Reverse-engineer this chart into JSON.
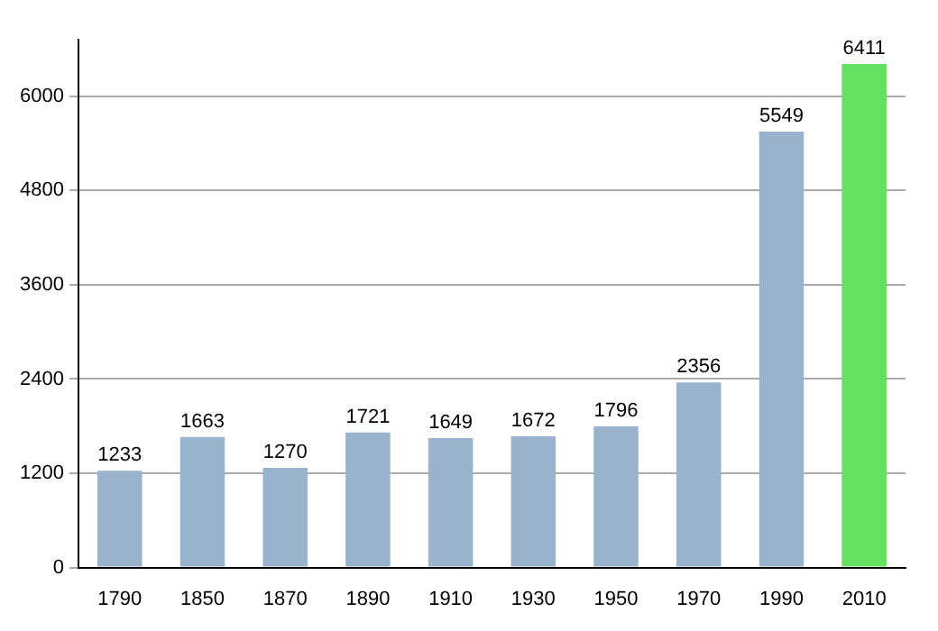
{
  "chart_data": {
    "type": "bar",
    "categories": [
      "1790",
      "1850",
      "1870",
      "1890",
      "1910",
      "1930",
      "1950",
      "1970",
      "1990",
      "2010"
    ],
    "values": [
      1233,
      1663,
      1270,
      1721,
      1649,
      1672,
      1796,
      2356,
      5549,
      6411
    ],
    "colors": [
      "#9ab3cd",
      "#9ab3cd",
      "#9ab3cd",
      "#9ab3cd",
      "#9ab3cd",
      "#9ab3cd",
      "#9ab3cd",
      "#9ab3cd",
      "#9ab3cd",
      "#66e060"
    ],
    "ylim": [
      0,
      6720
    ],
    "yticks": [
      0,
      1200,
      2400,
      3600,
      4800,
      6000
    ],
    "grid": "y",
    "data_labels": true,
    "legend": false
  }
}
